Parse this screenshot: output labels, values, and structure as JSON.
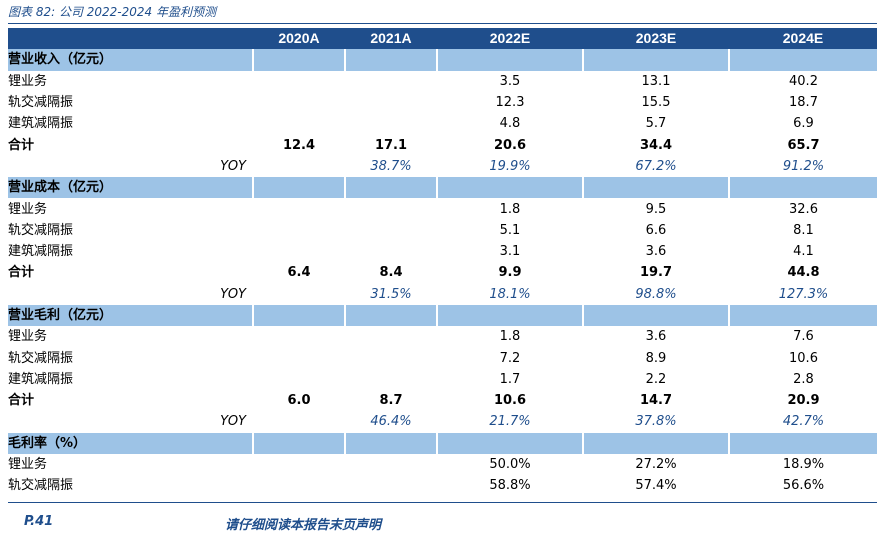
{
  "caption": "图表 82:  公司 2022-2024 年盈利预测",
  "header": {
    "years": [
      "2020A",
      "2021A",
      "2022E",
      "2023E",
      "2024E"
    ]
  },
  "sections": [
    {
      "title": "营业收入（亿元）",
      "rows": [
        {
          "label": "锂业务",
          "values": [
            "",
            "",
            "3.5",
            "13.1",
            "40.2"
          ]
        },
        {
          "label": "轨交减隔振",
          "values": [
            "",
            "",
            "12.3",
            "15.5",
            "18.7"
          ]
        },
        {
          "label": "建筑减隔振",
          "values": [
            "",
            "",
            "4.8",
            "5.7",
            "6.9"
          ]
        }
      ],
      "total": {
        "label": "合计",
        "values": [
          "12.4",
          "17.1",
          "20.6",
          "34.4",
          "65.7"
        ]
      },
      "yoy": {
        "label": "YOY",
        "values": [
          "",
          "38.7%",
          "19.9%",
          "67.2%",
          "91.2%"
        ]
      }
    },
    {
      "title": "营业成本（亿元）",
      "rows": [
        {
          "label": "锂业务",
          "values": [
            "",
            "",
            "1.8",
            "9.5",
            "32.6"
          ]
        },
        {
          "label": "轨交减隔振",
          "values": [
            "",
            "",
            "5.1",
            "6.6",
            "8.1"
          ]
        },
        {
          "label": "建筑减隔振",
          "values": [
            "",
            "",
            "3.1",
            "3.6",
            "4.1"
          ]
        }
      ],
      "total": {
        "label": "合计",
        "values": [
          "6.4",
          "8.4",
          "9.9",
          "19.7",
          "44.8"
        ]
      },
      "yoy": {
        "label": "YOY",
        "values": [
          "",
          "31.5%",
          "18.1%",
          "98.8%",
          "127.3%"
        ]
      }
    },
    {
      "title": "营业毛利（亿元）",
      "rows": [
        {
          "label": "锂业务",
          "values": [
            "",
            "",
            "1.8",
            "3.6",
            "7.6"
          ]
        },
        {
          "label": "轨交减隔振",
          "values": [
            "",
            "",
            "7.2",
            "8.9",
            "10.6"
          ]
        },
        {
          "label": "建筑减隔振",
          "values": [
            "",
            "",
            "1.7",
            "2.2",
            "2.8"
          ]
        }
      ],
      "total": {
        "label": "合计",
        "values": [
          "6.0",
          "8.7",
          "10.6",
          "14.7",
          "20.9"
        ]
      },
      "yoy": {
        "label": "YOY",
        "values": [
          "",
          "46.4%",
          "21.7%",
          "37.8%",
          "42.7%"
        ]
      }
    },
    {
      "title": "毛利率（%）",
      "rows": [
        {
          "label": "锂业务",
          "values": [
            "",
            "",
            "50.0%",
            "27.2%",
            "18.9%"
          ]
        },
        {
          "label": "轨交减隔振",
          "values": [
            "",
            "",
            "58.8%",
            "57.4%",
            "56.6%"
          ]
        }
      ]
    }
  ],
  "footer": {
    "page": "P.41",
    "note": "请仔细阅读本报告末页声明"
  }
}
